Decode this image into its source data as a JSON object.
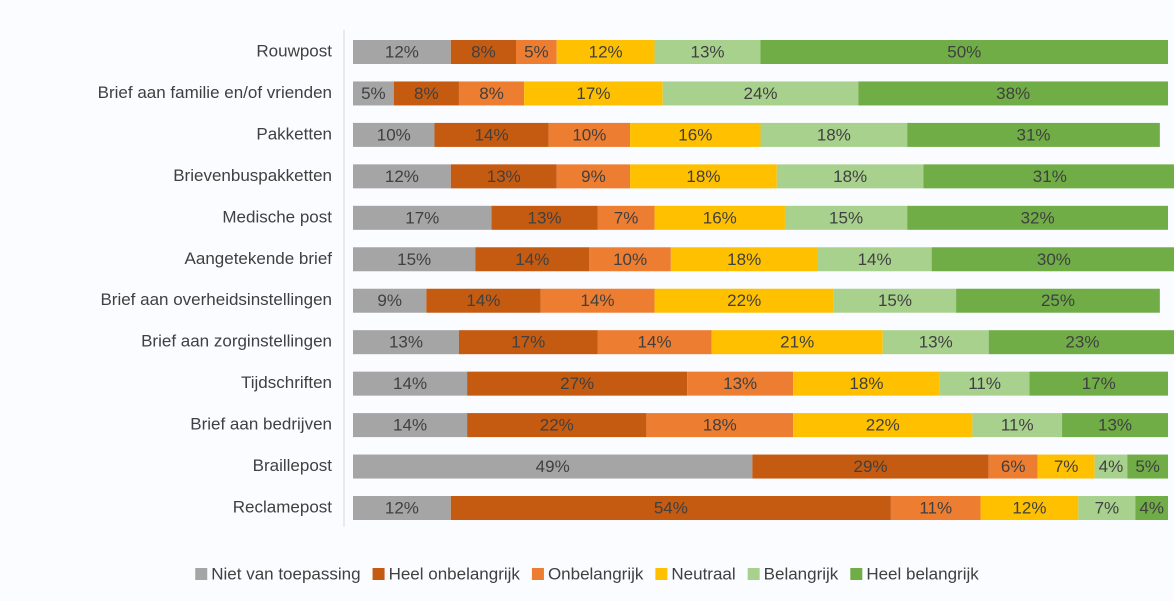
{
  "chart_data": {
    "type": "stacked-bar-horizontal",
    "categories": [
      "Rouwpost",
      "Brief aan familie en/of vrienden",
      "Pakketten",
      "Brievenbuspakketten",
      "Medische post",
      "Aangetekende brief",
      "Brief aan overheidsinstellingen",
      "Brief aan zorginstellingen",
      "Tijdschriften",
      "Brief aan bedrijven",
      "Braillepost",
      "Reclamepost"
    ],
    "xlim": [
      0,
      100
    ],
    "series": [
      {
        "name": "Niet van toepassing",
        "color": "#a5a5a5",
        "values": [
          12,
          5,
          10,
          12,
          17,
          15,
          9,
          13,
          14,
          14,
          49,
          12
        ],
        "value_labels": [
          "12%",
          "5%",
          "10%",
          "12%",
          "17%",
          "15%",
          "9%",
          "13%",
          "14%",
          "14%",
          "49%",
          "12%"
        ]
      },
      {
        "name": "Heel onbelangrijk",
        "color": "#c55a11",
        "values": [
          8,
          8,
          14,
          13,
          13,
          14,
          14,
          17,
          27,
          22,
          29,
          54
        ],
        "value_labels": [
          "8%",
          "8%",
          "14%",
          "13%",
          "13%",
          "14%",
          "14%",
          "17%",
          "27%",
          "22%",
          "29%",
          "54%"
        ]
      },
      {
        "name": "Onbelangrijk",
        "color": "#ed7d31",
        "values": [
          5,
          8,
          10,
          9,
          7,
          10,
          14,
          14,
          13,
          18,
          6,
          11
        ],
        "value_labels": [
          "5%",
          "8%",
          "10%",
          "9%",
          "7%",
          "10%",
          "14%",
          "14%",
          "13%",
          "18%",
          "6%",
          "11%"
        ]
      },
      {
        "name": "Neutraal",
        "color": "#ffc000",
        "values": [
          12,
          17,
          16,
          18,
          16,
          18,
          22,
          21,
          18,
          22,
          7,
          12
        ],
        "value_labels": [
          "12%",
          "17%",
          "16%",
          "18%",
          "16%",
          "18%",
          "22%",
          "21%",
          "18%",
          "22%",
          "7%",
          "12%"
        ]
      },
      {
        "name": "Belangrijk",
        "color": "#a9d18e",
        "values": [
          13,
          24,
          18,
          18,
          15,
          14,
          15,
          13,
          11,
          11,
          4,
          7
        ],
        "value_labels": [
          "13%",
          "24%",
          "18%",
          "18%",
          "15%",
          "14%",
          "15%",
          "13%",
          "11%",
          "11%",
          "4%",
          "7%"
        ]
      },
      {
        "name": "Heel belangrijk",
        "color": "#70ad47",
        "values": [
          50,
          38,
          31,
          31,
          32,
          30,
          25,
          23,
          17,
          13,
          5,
          4
        ],
        "value_labels": [
          "50%",
          "38%",
          "31%",
          "31%",
          "32%",
          "30%",
          "25%",
          "23%",
          "17%",
          "13%",
          "5%",
          "4%"
        ]
      }
    ]
  }
}
